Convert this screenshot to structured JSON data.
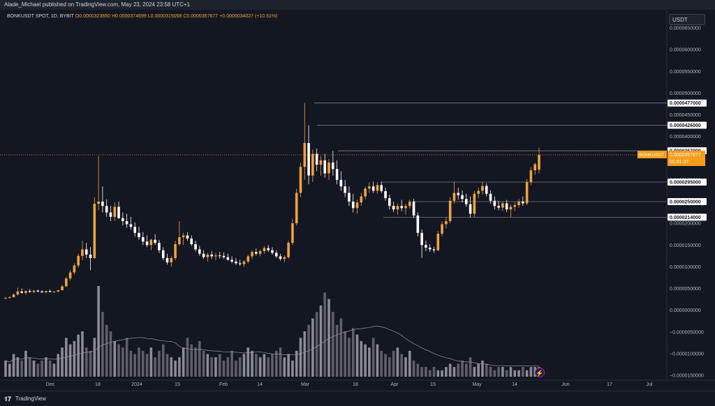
{
  "header": {
    "publisher": "Alade_Michael published on TradingView.com, May 23, 2024 23:58 UTC+1"
  },
  "legend": {
    "symbol": "BONKUSDT SPOT, 1D, BYBIT",
    "open": "O0.0000323650",
    "high": "H0.0000374699",
    "low": "L0.0000315058",
    "close": "C0.0000357677",
    "change": "+0.0000034027 (+10.51%)"
  },
  "currency_button": "USDT",
  "footer": {
    "brand": "TradingView"
  },
  "colors": {
    "background": "#131722",
    "up": "#f0a33a",
    "down": "#ffffff",
    "volume": "#787b86",
    "level": "#787b86",
    "price_label": "#f59c1a"
  },
  "chart_data": {
    "type": "candlestick",
    "symbol": "BONKUSDT",
    "timeframe": "1D",
    "exchange": "BYBIT",
    "y_range": [
      -1.5e-05,
      6.5e-05
    ],
    "y_tick_labels": [
      "0.0000650000",
      "0.0000600000",
      "0.0000550000",
      "0.0000500000",
      "0.0000450000",
      "0.0000400000",
      "0.0000350000",
      "0.0000300000",
      "0.0000250000",
      "0.0000200000",
      "0.0000150000",
      "0.0000100000",
      "0.0000050000",
      "0.0000000000",
      "−0.0000050000",
      "−0.0000100000",
      "−0.0000150000"
    ],
    "x_tick_labels": [
      "Dec",
      "18",
      "2024",
      "15",
      "Feb",
      "14",
      "Mar",
      "18",
      "Apr",
      "15",
      "May",
      "14",
      "Jun",
      "17",
      "Jul"
    ],
    "levels": [
      {
        "label": "0.0000477000",
        "value": 4.77e-05
      },
      {
        "label": "0.0000426000",
        "value": 4.26e-05
      },
      {
        "label": "0.0000367000",
        "value": 3.67e-05
      },
      {
        "label": "0.0000295000",
        "value": 2.95e-05
      },
      {
        "label": "0.0000250000",
        "value": 2.5e-05
      },
      {
        "label": "0.0000214000",
        "value": 2.14e-05
      }
    ],
    "current_price": {
      "symbol": "BONKUSDT",
      "price": "0.0000357677",
      "countdown": "01:01:27",
      "value": 3.57677e-05
    },
    "candles": [
      {
        "o": 2.7e-06,
        "h": 3.1e-06,
        "l": 2.6e-06,
        "c": 2.8e-06
      },
      {
        "o": 2.8e-06,
        "h": 3.2e-06,
        "l": 2.7e-06,
        "c": 3e-06
      },
      {
        "o": 3e-06,
        "h": 3.8e-06,
        "l": 2.9e-06,
        "c": 3.6e-06
      },
      {
        "o": 3.6e-06,
        "h": 5.2e-06,
        "l": 3.4e-06,
        "c": 4.3e-06
      },
      {
        "o": 4.3e-06,
        "h": 5e-06,
        "l": 3.8e-06,
        "c": 4e-06
      },
      {
        "o": 4e-06,
        "h": 4.6e-06,
        "l": 3.6e-06,
        "c": 4.4e-06
      },
      {
        "o": 4.4e-06,
        "h": 4.8e-06,
        "l": 4e-06,
        "c": 4.2e-06
      },
      {
        "o": 4.2e-06,
        "h": 4.6e-06,
        "l": 3.9e-06,
        "c": 4.5e-06
      },
      {
        "o": 4.5e-06,
        "h": 4.7e-06,
        "l": 4.1e-06,
        "c": 4.3e-06
      },
      {
        "o": 4.3e-06,
        "h": 4.6e-06,
        "l": 4e-06,
        "c": 4.1e-06
      },
      {
        "o": 4.1e-06,
        "h": 4.5e-06,
        "l": 3.9e-06,
        "c": 4.4e-06
      },
      {
        "o": 4.4e-06,
        "h": 4.7e-06,
        "l": 4.1e-06,
        "c": 4.2e-06
      },
      {
        "o": 4.2e-06,
        "h": 4.4e-06,
        "l": 4e-06,
        "c": 4.3e-06
      },
      {
        "o": 4.3e-06,
        "h": 4.7e-06,
        "l": 4.1e-06,
        "c": 4.6e-06
      },
      {
        "o": 4.6e-06,
        "h": 5.8e-06,
        "l": 4.5e-06,
        "c": 5.5e-06
      },
      {
        "o": 5.5e-06,
        "h": 7.7e-06,
        "l": 5.3e-06,
        "c": 7.3e-06
      },
      {
        "o": 7.3e-06,
        "h": 9.2e-06,
        "l": 6.8e-06,
        "c": 8.7e-06
      },
      {
        "o": 8.7e-06,
        "h": 1.08e-05,
        "l": 8.2e-06,
        "c": 1.03e-05
      },
      {
        "o": 1.03e-05,
        "h": 1.3e-05,
        "l": 9.8e-06,
        "c": 1.25e-05
      },
      {
        "o": 1.25e-05,
        "h": 1.6e-05,
        "l": 1.15e-05,
        "c": 1.4e-05
      },
      {
        "o": 1.4e-05,
        "h": 1.55e-05,
        "l": 1.2e-05,
        "c": 1.28e-05
      },
      {
        "o": 1.28e-05,
        "h": 1.45e-05,
        "l": 9.2e-06,
        "c": 1.2e-05
      },
      {
        "o": 1.2e-05,
        "h": 2.6e-05,
        "l": 1.18e-05,
        "c": 2.45e-05
      },
      {
        "o": 2.45e-05,
        "h": 3.55e-05,
        "l": 2.3e-05,
        "c": 2.5e-05
      },
      {
        "o": 2.5e-05,
        "h": 2.85e-05,
        "l": 2.25e-05,
        "c": 2.4e-05
      },
      {
        "o": 2.4e-05,
        "h": 2.55e-05,
        "l": 2.15e-05,
        "c": 2.25e-05
      },
      {
        "o": 2.25e-05,
        "h": 2.4e-05,
        "l": 2.05e-05,
        "c": 2.15e-05
      },
      {
        "o": 2.15e-05,
        "h": 2.48e-05,
        "l": 2.05e-05,
        "c": 2.38e-05
      },
      {
        "o": 2.38e-05,
        "h": 2.5e-05,
        "l": 2.1e-05,
        "c": 2.12e-05
      },
      {
        "o": 2.12e-05,
        "h": 2.25e-05,
        "l": 1.95e-05,
        "c": 2.05e-05
      },
      {
        "o": 2.05e-05,
        "h": 2.22e-05,
        "l": 1.9e-05,
        "c": 1.98e-05
      },
      {
        "o": 1.98e-05,
        "h": 2.15e-05,
        "l": 1.85e-05,
        "c": 1.92e-05
      },
      {
        "o": 1.92e-05,
        "h": 2.02e-05,
        "l": 1.7e-05,
        "c": 1.78e-05
      },
      {
        "o": 1.78e-05,
        "h": 1.92e-05,
        "l": 1.62e-05,
        "c": 1.68e-05
      },
      {
        "o": 1.68e-05,
        "h": 1.8e-05,
        "l": 1.5e-05,
        "c": 1.58e-05
      },
      {
        "o": 1.58e-05,
        "h": 1.72e-05,
        "l": 1.45e-05,
        "c": 1.5e-05
      },
      {
        "o": 1.5e-05,
        "h": 1.65e-05,
        "l": 1.38e-05,
        "c": 1.62e-05
      },
      {
        "o": 1.62e-05,
        "h": 1.75e-05,
        "l": 1.5e-05,
        "c": 1.55e-05
      },
      {
        "o": 1.55e-05,
        "h": 1.62e-05,
        "l": 1.32e-05,
        "c": 1.38e-05
      },
      {
        "o": 1.38e-05,
        "h": 1.45e-05,
        "l": 1.15e-05,
        "c": 1.2e-05
      },
      {
        "o": 1.2e-05,
        "h": 1.3e-05,
        "l": 1.05e-05,
        "c": 1.1e-05
      },
      {
        "o": 1.1e-05,
        "h": 1.25e-05,
        "l": 1e-05,
        "c": 1.2e-05
      },
      {
        "o": 1.2e-05,
        "h": 1.6e-05,
        "l": 1.15e-05,
        "c": 1.52e-05
      },
      {
        "o": 1.52e-05,
        "h": 2.05e-05,
        "l": 1.48e-05,
        "c": 1.68e-05
      },
      {
        "o": 1.68e-05,
        "h": 1.78e-05,
        "l": 1.5e-05,
        "c": 1.72e-05
      },
      {
        "o": 1.72e-05,
        "h": 1.8e-05,
        "l": 1.6e-05,
        "c": 1.65e-05
      },
      {
        "o": 1.65e-05,
        "h": 1.72e-05,
        "l": 1.48e-05,
        "c": 1.52e-05
      },
      {
        "o": 1.52e-05,
        "h": 1.6e-05,
        "l": 1.35e-05,
        "c": 1.4e-05
      },
      {
        "o": 1.4e-05,
        "h": 1.48e-05,
        "l": 1.25e-05,
        "c": 1.3e-05
      },
      {
        "o": 1.3e-05,
        "h": 1.38e-05,
        "l": 1.18e-05,
        "c": 1.22e-05
      },
      {
        "o": 1.22e-05,
        "h": 1.32e-05,
        "l": 1.12e-05,
        "c": 1.28e-05
      },
      {
        "o": 1.28e-05,
        "h": 1.36e-05,
        "l": 1.18e-05,
        "c": 1.24e-05
      },
      {
        "o": 1.24e-05,
        "h": 1.32e-05,
        "l": 1.15e-05,
        "c": 1.26e-05
      },
      {
        "o": 1.26e-05,
        "h": 1.34e-05,
        "l": 1.19e-05,
        "c": 1.25e-05
      },
      {
        "o": 1.25e-05,
        "h": 1.33e-05,
        "l": 1.18e-05,
        "c": 1.22e-05
      },
      {
        "o": 1.22e-05,
        "h": 1.3e-05,
        "l": 1.14e-05,
        "c": 1.16e-05
      },
      {
        "o": 1.16e-05,
        "h": 1.24e-05,
        "l": 1.08e-05,
        "c": 1.12e-05
      },
      {
        "o": 1.12e-05,
        "h": 1.2e-05,
        "l": 1.04e-05,
        "c": 1.08e-05
      },
      {
        "o": 1.08e-05,
        "h": 1.16e-05,
        "l": 1.02e-05,
        "c": 1.06e-05
      },
      {
        "o": 1.06e-05,
        "h": 1.15e-05,
        "l": 1e-05,
        "c": 1.12e-05
      },
      {
        "o": 1.12e-05,
        "h": 1.28e-05,
        "l": 1.08e-05,
        "c": 1.24e-05
      },
      {
        "o": 1.24e-05,
        "h": 1.38e-05,
        "l": 1.18e-05,
        "c": 1.34e-05
      },
      {
        "o": 1.34e-05,
        "h": 1.42e-05,
        "l": 1.26e-05,
        "c": 1.3e-05
      },
      {
        "o": 1.3e-05,
        "h": 1.4e-05,
        "l": 1.24e-05,
        "c": 1.36e-05
      },
      {
        "o": 1.36e-05,
        "h": 1.48e-05,
        "l": 1.3e-05,
        "c": 1.43e-05
      },
      {
        "o": 1.43e-05,
        "h": 1.5e-05,
        "l": 1.34e-05,
        "c": 1.38e-05
      },
      {
        "o": 1.38e-05,
        "h": 1.45e-05,
        "l": 1.28e-05,
        "c": 1.32e-05
      },
      {
        "o": 1.32e-05,
        "h": 1.38e-05,
        "l": 1.2e-05,
        "c": 1.24e-05
      },
      {
        "o": 1.24e-05,
        "h": 1.3e-05,
        "l": 1.14e-05,
        "c": 1.18e-05
      },
      {
        "o": 1.18e-05,
        "h": 1.26e-05,
        "l": 1.1e-05,
        "c": 1.22e-05
      },
      {
        "o": 1.22e-05,
        "h": 1.6e-05,
        "l": 1.18e-05,
        "c": 1.55e-05
      },
      {
        "o": 1.55e-05,
        "h": 2.1e-05,
        "l": 1.5e-05,
        "c": 2e-05
      },
      {
        "o": 2e-05,
        "h": 2.8e-05,
        "l": 1.95e-05,
        "c": 2.7e-05
      },
      {
        "o": 2.7e-05,
        "h": 3.4e-05,
        "l": 2.6e-05,
        "c": 3.3e-05
      },
      {
        "o": 3.3e-05,
        "h": 4.77e-05,
        "l": 3e-05,
        "c": 3.85e-05
      },
      {
        "o": 3.85e-05,
        "h": 4.26e-05,
        "l": 2.9e-05,
        "c": 3.1e-05
      },
      {
        "o": 3.1e-05,
        "h": 3.7e-05,
        "l": 2.95e-05,
        "c": 3.6e-05
      },
      {
        "o": 3.6e-05,
        "h": 3.72e-05,
        "l": 3.2e-05,
        "c": 3.35e-05
      },
      {
        "o": 3.35e-05,
        "h": 3.55e-05,
        "l": 3.1e-05,
        "c": 3.45e-05
      },
      {
        "o": 3.45e-05,
        "h": 3.6e-05,
        "l": 3.05e-05,
        "c": 3.15e-05
      },
      {
        "o": 3.15e-05,
        "h": 3.48e-05,
        "l": 3e-05,
        "c": 3.4e-05
      },
      {
        "o": 3.4e-05,
        "h": 3.67e-05,
        "l": 3.1e-05,
        "c": 3.25e-05
      },
      {
        "o": 3.25e-05,
        "h": 3.45e-05,
        "l": 2.9e-05,
        "c": 3e-05
      },
      {
        "o": 3e-05,
        "h": 3.2e-05,
        "l": 2.75e-05,
        "c": 2.85e-05
      },
      {
        "o": 2.85e-05,
        "h": 3e-05,
        "l": 2.6e-05,
        "c": 2.7e-05
      },
      {
        "o": 2.7e-05,
        "h": 2.85e-05,
        "l": 2.4e-05,
        "c": 2.5e-05
      },
      {
        "o": 2.5e-05,
        "h": 2.68e-05,
        "l": 2.25e-05,
        "c": 2.35e-05
      },
      {
        "o": 2.35e-05,
        "h": 2.55e-05,
        "l": 2.22e-05,
        "c": 2.48e-05
      },
      {
        "o": 2.48e-05,
        "h": 2.7e-05,
        "l": 2.4e-05,
        "c": 2.62e-05
      },
      {
        "o": 2.62e-05,
        "h": 2.85e-05,
        "l": 2.55e-05,
        "c": 2.8e-05
      },
      {
        "o": 2.8e-05,
        "h": 2.95e-05,
        "l": 2.7e-05,
        "c": 2.85e-05
      },
      {
        "o": 2.85e-05,
        "h": 2.96e-05,
        "l": 2.7e-05,
        "c": 2.75e-05
      },
      {
        "o": 2.75e-05,
        "h": 2.95e-05,
        "l": 2.68e-05,
        "c": 2.88e-05
      },
      {
        "o": 2.88e-05,
        "h": 2.96e-05,
        "l": 2.7e-05,
        "c": 2.74e-05
      },
      {
        "o": 2.74e-05,
        "h": 2.82e-05,
        "l": 2.52e-05,
        "c": 2.58e-05
      },
      {
        "o": 2.58e-05,
        "h": 2.66e-05,
        "l": 2.32e-05,
        "c": 2.4e-05
      },
      {
        "o": 2.4e-05,
        "h": 2.5e-05,
        "l": 2.26e-05,
        "c": 2.32e-05
      },
      {
        "o": 2.32e-05,
        "h": 2.46e-05,
        "l": 2.2e-05,
        "c": 2.4e-05
      },
      {
        "o": 2.4e-05,
        "h": 2.54e-05,
        "l": 2.28e-05,
        "c": 2.35e-05
      },
      {
        "o": 2.35e-05,
        "h": 2.45e-05,
        "l": 2.2e-05,
        "c": 2.4e-05
      },
      {
        "o": 2.4e-05,
        "h": 2.55e-05,
        "l": 2.34e-05,
        "c": 2.5e-05
      },
      {
        "o": 2.5e-05,
        "h": 2.56e-05,
        "l": 2.12e-05,
        "c": 2.18e-05
      },
      {
        "o": 2.18e-05,
        "h": 2.25e-05,
        "l": 1.7e-05,
        "c": 1.78e-05
      },
      {
        "o": 1.78e-05,
        "h": 1.86e-05,
        "l": 1.2e-05,
        "c": 1.5e-05
      },
      {
        "o": 1.5e-05,
        "h": 1.6e-05,
        "l": 1.36e-05,
        "c": 1.44e-05
      },
      {
        "o": 1.44e-05,
        "h": 1.52e-05,
        "l": 1.34e-05,
        "c": 1.4e-05
      },
      {
        "o": 1.4e-05,
        "h": 1.46e-05,
        "l": 1.32e-05,
        "c": 1.38e-05
      },
      {
        "o": 1.38e-05,
        "h": 1.82e-05,
        "l": 1.36e-05,
        "c": 1.76e-05
      },
      {
        "o": 1.76e-05,
        "h": 2.05e-05,
        "l": 1.7e-05,
        "c": 1.98e-05
      },
      {
        "o": 1.98e-05,
        "h": 2.14e-05,
        "l": 1.88e-05,
        "c": 2.05e-05
      },
      {
        "o": 2.05e-05,
        "h": 2.6e-05,
        "l": 2e-05,
        "c": 2.52e-05
      },
      {
        "o": 2.52e-05,
        "h": 2.95e-05,
        "l": 2.45e-05,
        "c": 2.7e-05
      },
      {
        "o": 2.7e-05,
        "h": 2.82e-05,
        "l": 2.55e-05,
        "c": 2.65e-05
      },
      {
        "o": 2.65e-05,
        "h": 2.76e-05,
        "l": 2.48e-05,
        "c": 2.56e-05
      },
      {
        "o": 2.56e-05,
        "h": 2.68e-05,
        "l": 2.38e-05,
        "c": 2.44e-05
      },
      {
        "o": 2.44e-05,
        "h": 2.62e-05,
        "l": 2.14e-05,
        "c": 2.22e-05
      },
      {
        "o": 2.22e-05,
        "h": 2.75e-05,
        "l": 2.15e-05,
        "c": 2.68e-05
      },
      {
        "o": 2.68e-05,
        "h": 2.82e-05,
        "l": 2.58e-05,
        "c": 2.75e-05
      },
      {
        "o": 2.75e-05,
        "h": 2.95e-05,
        "l": 2.66e-05,
        "c": 2.86e-05
      },
      {
        "o": 2.86e-05,
        "h": 2.92e-05,
        "l": 2.62e-05,
        "c": 2.68e-05
      },
      {
        "o": 2.68e-05,
        "h": 2.76e-05,
        "l": 2.45e-05,
        "c": 2.52e-05
      },
      {
        "o": 2.52e-05,
        "h": 2.62e-05,
        "l": 2.32e-05,
        "c": 2.4e-05
      },
      {
        "o": 2.4e-05,
        "h": 2.52e-05,
        "l": 2.3e-05,
        "c": 2.36e-05
      },
      {
        "o": 2.36e-05,
        "h": 2.5e-05,
        "l": 2.28e-05,
        "c": 2.46e-05
      },
      {
        "o": 2.46e-05,
        "h": 2.54e-05,
        "l": 2.26e-05,
        "c": 2.32e-05
      },
      {
        "o": 2.32e-05,
        "h": 2.44e-05,
        "l": 2.14e-05,
        "c": 2.38e-05
      },
      {
        "o": 2.38e-05,
        "h": 2.48e-05,
        "l": 2.28e-05,
        "c": 2.42e-05
      },
      {
        "o": 2.42e-05,
        "h": 2.56e-05,
        "l": 2.36e-05,
        "c": 2.5e-05
      },
      {
        "o": 2.5e-05,
        "h": 2.62e-05,
        "l": 2.4e-05,
        "c": 2.46e-05
      },
      {
        "o": 2.46e-05,
        "h": 3.02e-05,
        "l": 2.42e-05,
        "c": 2.95e-05
      },
      {
        "o": 2.95e-05,
        "h": 3.3e-05,
        "l": 2.88e-05,
        "c": 3.22e-05
      },
      {
        "o": 3.22e-05,
        "h": 3.4e-05,
        "l": 3.12e-05,
        "c": 3.36e-05
      },
      {
        "o": 3.2365e-05,
        "h": 3.74699e-05,
        "l": 3.15058e-05,
        "c": 3.57677e-05
      }
    ],
    "volume_series": [
      5,
      4,
      7,
      6,
      5,
      8,
      6,
      5,
      4,
      5,
      6,
      5,
      4,
      7,
      9,
      12,
      10,
      11,
      13,
      14,
      9,
      8,
      12,
      28,
      20,
      16,
      14,
      11,
      10,
      9,
      12,
      8,
      7,
      9,
      8,
      7,
      9,
      6,
      8,
      10,
      7,
      6,
      5,
      6,
      9,
      12,
      10,
      9,
      11,
      8,
      7,
      6,
      6,
      7,
      5,
      6,
      8,
      5,
      6,
      7,
      9,
      8,
      7,
      6,
      7,
      6,
      7,
      8,
      9,
      6,
      7,
      5,
      8,
      12,
      14,
      16,
      18,
      20,
      22,
      26,
      24,
      20,
      16,
      18,
      14,
      12,
      15,
      13,
      11,
      10,
      9,
      12,
      10,
      8,
      7,
      6,
      8,
      9,
      7,
      6,
      8,
      5,
      4,
      3,
      3,
      2,
      3,
      2,
      2,
      3,
      4,
      3,
      4,
      5,
      4,
      6,
      3,
      4,
      5,
      4,
      3,
      2,
      3,
      3,
      2,
      3,
      2,
      2,
      3,
      2,
      3,
      3,
      3,
      2,
      3,
      4,
      4,
      3
    ]
  }
}
